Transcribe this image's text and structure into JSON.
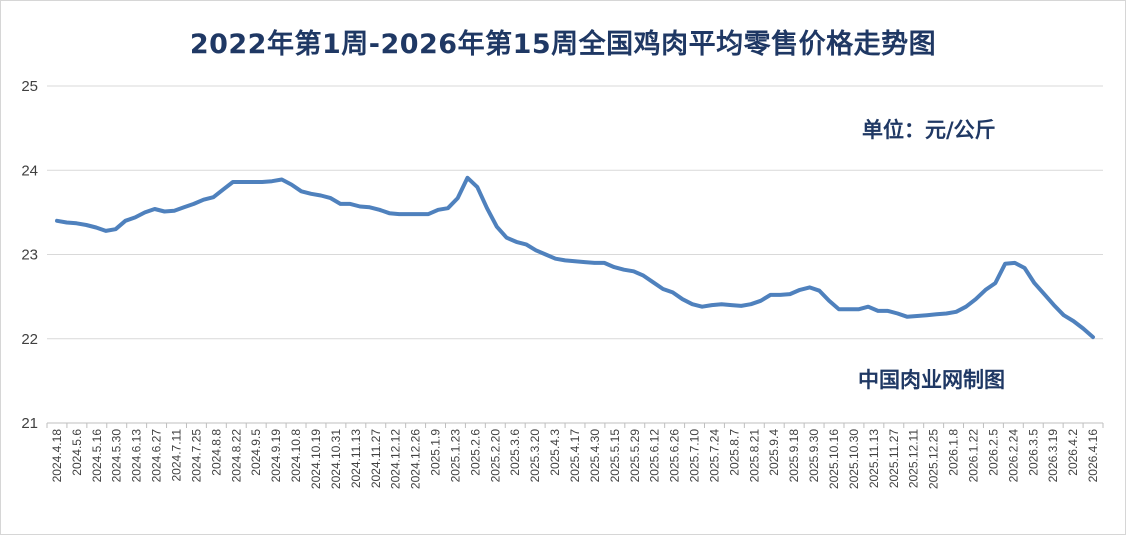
{
  "chart_data": {
    "type": "line",
    "title": "2022年第1周-2026年第15周全国鸡肉平均零售价格走势图",
    "unit_label": "单位：元/公斤",
    "source_label": "中国肉业网制图",
    "xlabel": "",
    "ylabel": "",
    "ylim": [
      21,
      25
    ],
    "yticks": [
      21,
      22,
      23,
      24,
      25
    ],
    "grid": true,
    "legend": "none",
    "line_color": "#4f81bd",
    "x_tick_labels": [
      "2024.4.18",
      "2024.5.6",
      "2024.5.16",
      "2024.5.30",
      "2024.6.13",
      "2024.6.27",
      "2024.7.11",
      "2024.7.25",
      "2024.8.8",
      "2024.8.22",
      "2024.9.5",
      "2024.9.19",
      "2024.10.8",
      "2024.10.19",
      "2024.10.31",
      "2024.11.13",
      "2024.11.27",
      "2024.12.12",
      "2024.12.26",
      "2025.1.9",
      "2025.1.23",
      "2025.2.6",
      "2025.2.20",
      "2025.3.6",
      "2025.3.20",
      "2025.4.3",
      "2025.4.17",
      "2025.4.30",
      "2025.5.15",
      "2025.5.29",
      "2025.6.12",
      "2025.6.26",
      "2025.7.10",
      "2025.7.24",
      "2025.8.7",
      "2025.8.21",
      "2025.9.4",
      "2025.9.18",
      "2025.9.30",
      "2025.10.16",
      "2025.10.30",
      "2025.11.13",
      "2025.11.27",
      "2025.12.11",
      "2025.12.25",
      "2026.1.8",
      "2026.1.22",
      "2026.2.5",
      "2026.2.24",
      "2026.3.5",
      "2026.3.19",
      "2026.4.2",
      "2026.4.16"
    ],
    "series": [
      {
        "values": [
          23.4,
          23.38,
          23.37,
          23.35,
          23.32,
          23.28,
          23.3,
          23.4,
          23.44,
          23.5,
          23.54,
          23.51,
          23.52,
          23.56,
          23.6,
          23.65,
          23.68,
          23.77,
          23.86,
          23.86,
          23.86,
          23.86,
          23.87,
          23.89,
          23.83,
          23.75,
          23.72,
          23.7,
          23.67,
          23.6,
          23.6,
          23.57,
          23.56,
          23.53,
          23.49,
          23.48,
          23.48,
          23.48,
          23.48,
          23.53,
          23.55,
          23.67,
          23.91,
          23.8,
          23.55,
          23.33,
          23.2,
          23.15,
          23.12,
          23.05,
          23.0,
          22.95,
          22.93,
          22.92,
          22.91,
          22.9,
          22.9,
          22.85,
          22.82,
          22.8,
          22.75,
          22.67,
          22.59,
          22.55,
          22.47,
          22.41,
          22.38,
          22.4,
          22.41,
          22.4,
          22.39,
          22.41,
          22.45,
          22.52,
          22.52,
          22.53,
          22.58,
          22.61,
          22.57,
          22.45,
          22.35,
          22.35,
          22.35,
          22.38,
          22.33,
          22.33,
          22.3,
          22.26,
          22.27,
          22.28,
          22.29,
          22.3,
          22.32,
          22.38,
          22.47,
          22.58,
          22.66,
          22.89,
          22.9,
          22.84,
          22.66,
          22.53,
          22.4,
          22.28,
          22.21,
          22.12,
          22.02
        ]
      }
    ]
  }
}
